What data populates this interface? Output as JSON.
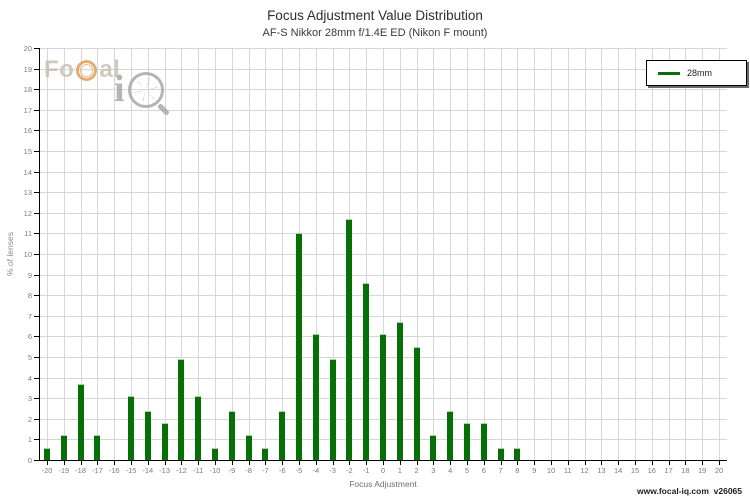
{
  "page": {
    "title": "Focus Adjustment Value Distribution",
    "subtitle": "AF-S Nikkor 28mm f/1.4E ED (Nikon F mount)",
    "footer": "www.focal-iq.com  v26065",
    "watermark": {
      "text_fo": "Fo",
      "text_al": "al",
      "text_i": "i"
    }
  },
  "chart_data": {
    "type": "bar",
    "title": "Focus Adjustment Value Distribution",
    "subtitle": "AF-S Nikkor 28mm f/1.4E ED (Nikon F mount)",
    "xlabel": "Focus Adjustment",
    "ylabel": "% of lenses",
    "xlim": [
      -20.5,
      20.5
    ],
    "ylim": [
      0,
      20
    ],
    "x_tick_step": 1,
    "y_tick_step": 1,
    "grid": true,
    "bar_color": "#067006",
    "legend": {
      "label": "28mm",
      "position": "top-right",
      "swatch_color": "#067006"
    },
    "categories": [
      -20,
      -19,
      -18,
      -17,
      -16,
      -15,
      -14,
      -13,
      -12,
      -11,
      -10,
      -9,
      -8,
      -7,
      -6,
      -5,
      -4,
      -3,
      -2,
      -1,
      0,
      1,
      2,
      3,
      4,
      5,
      6,
      7,
      8,
      9,
      10,
      11,
      12,
      13,
      14,
      15,
      16,
      17,
      18,
      19,
      20
    ],
    "series": [
      {
        "name": "28mm",
        "values": [
          0.6,
          1.2,
          3.7,
          1.2,
          0,
          3.1,
          2.4,
          1.8,
          4.9,
          3.1,
          0.6,
          2.4,
          1.2,
          0.6,
          2.4,
          11.0,
          6.1,
          4.9,
          11.7,
          8.6,
          6.1,
          6.7,
          5.5,
          1.2,
          2.4,
          1.8,
          1.8,
          0.6,
          0.6,
          0,
          0,
          0,
          0,
          0,
          0,
          0,
          0,
          0,
          0,
          0,
          0
        ]
      }
    ]
  }
}
